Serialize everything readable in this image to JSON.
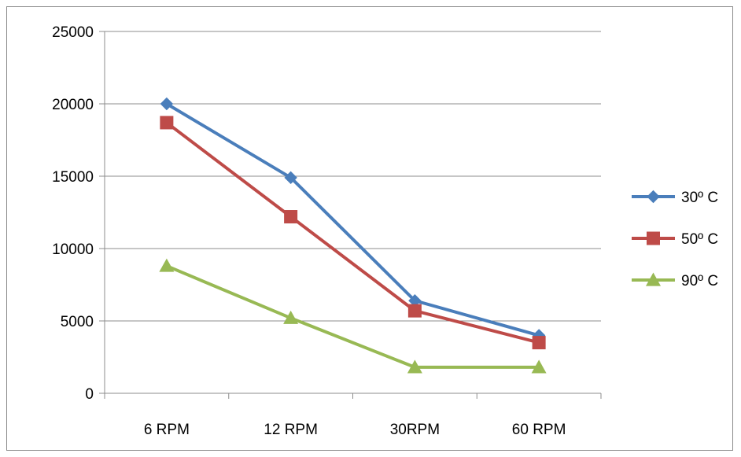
{
  "chart_data": {
    "type": "line",
    "title": "",
    "xlabel": "",
    "ylabel": "",
    "categories": [
      "6 RPM",
      "12 RPM",
      "30RPM",
      "60 RPM"
    ],
    "ylim": [
      0,
      25000
    ],
    "yticks": [
      0,
      5000,
      10000,
      15000,
      20000,
      25000
    ],
    "grid": true,
    "legend_position": "right",
    "series": [
      {
        "name": "30º C",
        "values": [
          20000,
          14900,
          6400,
          4000
        ],
        "color": "#4a7ebb",
        "marker": "diamond"
      },
      {
        "name": "50º C",
        "values": [
          18700,
          12200,
          5700,
          3500
        ],
        "color": "#be4b48",
        "marker": "square"
      },
      {
        "name": "90º C",
        "values": [
          8800,
          5200,
          1800,
          1800
        ],
        "color": "#98b954",
        "marker": "triangle"
      }
    ]
  }
}
